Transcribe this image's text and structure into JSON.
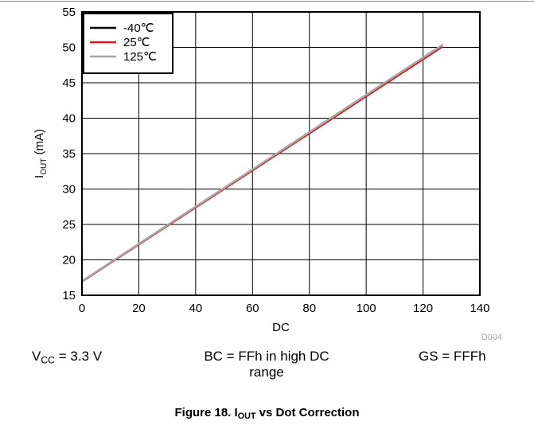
{
  "chart_data": {
    "type": "line",
    "xlabel": "DC",
    "ylabel_main": "I",
    "ylabel_sub": "OUT",
    "ylabel_unit": " (mA)",
    "xlim": [
      0,
      140
    ],
    "ylim": [
      15,
      55
    ],
    "xticks": [
      0,
      20,
      40,
      60,
      80,
      100,
      120,
      140
    ],
    "yticks": [
      15,
      20,
      25,
      30,
      35,
      40,
      45,
      50,
      55
    ],
    "grid": true,
    "legend_position": "top-left",
    "series": [
      {
        "name": "-40℃",
        "color": "#000000",
        "x": [
          0,
          127
        ],
        "y": [
          16.9,
          50.1
        ]
      },
      {
        "name": "25℃",
        "color": "#e8141b",
        "x": [
          0,
          127
        ],
        "y": [
          16.9,
          50.1
        ]
      },
      {
        "name": "125℃",
        "color": "#a6a6a6",
        "x": [
          0,
          127
        ],
        "y": [
          17.0,
          50.4
        ]
      }
    ],
    "annotation": "D004"
  },
  "conditions": {
    "vcc_main": "V",
    "vcc_sub": "CC",
    "vcc_rest": " = 3.3 V",
    "bc_line1": "BC = FFh in high DC",
    "bc_line2": "range",
    "gs": "GS = FFFh"
  },
  "caption": {
    "prefix": "Figure 18. I",
    "sub": "OUT",
    "suffix": " vs Dot Correction"
  }
}
